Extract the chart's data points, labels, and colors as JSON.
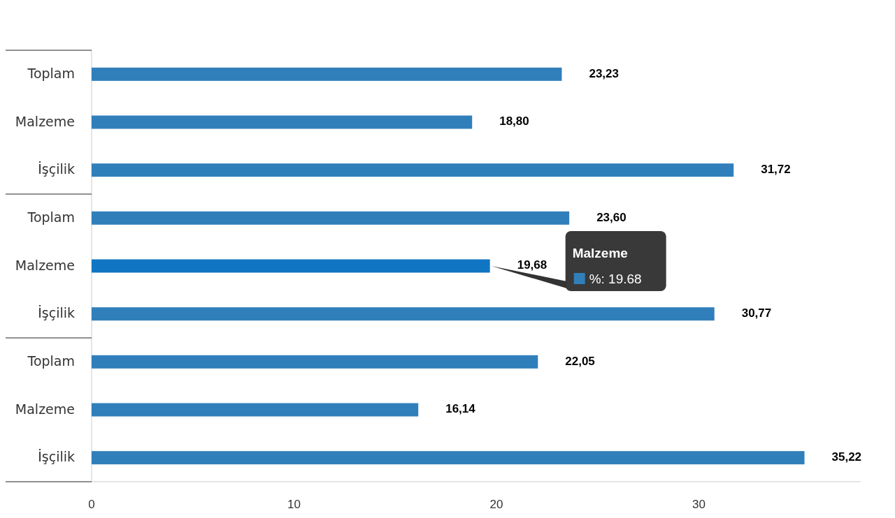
{
  "chart_data": {
    "type": "bar",
    "orientation": "horizontal",
    "categories": [
      "Toplam",
      "Malzeme",
      "İşçilik",
      "Toplam",
      "Malzeme",
      "İşçilik",
      "Toplam",
      "Malzeme",
      "İşçilik"
    ],
    "values": [
      23.23,
      18.8,
      31.72,
      23.6,
      19.68,
      30.77,
      22.05,
      16.14,
      35.22
    ],
    "value_labels": [
      "23,23",
      "18,80",
      "31,72",
      "23,60",
      "19,68",
      "30,77",
      "22,05",
      "16,14",
      "35,22"
    ],
    "colors": [
      "#307fbb",
      "#307fbb",
      "#307fbb",
      "#307fbb",
      "#1075c2",
      "#307fbb",
      "#307fbb",
      "#307fbb",
      "#307fbb"
    ],
    "xlim": [
      0,
      38
    ],
    "xticks": [
      0,
      10,
      20,
      30
    ],
    "grid": false,
    "annotations": [
      {
        "text": "Malzeme\n%: 19.68",
        "x": 19.68
      }
    ]
  }
}
